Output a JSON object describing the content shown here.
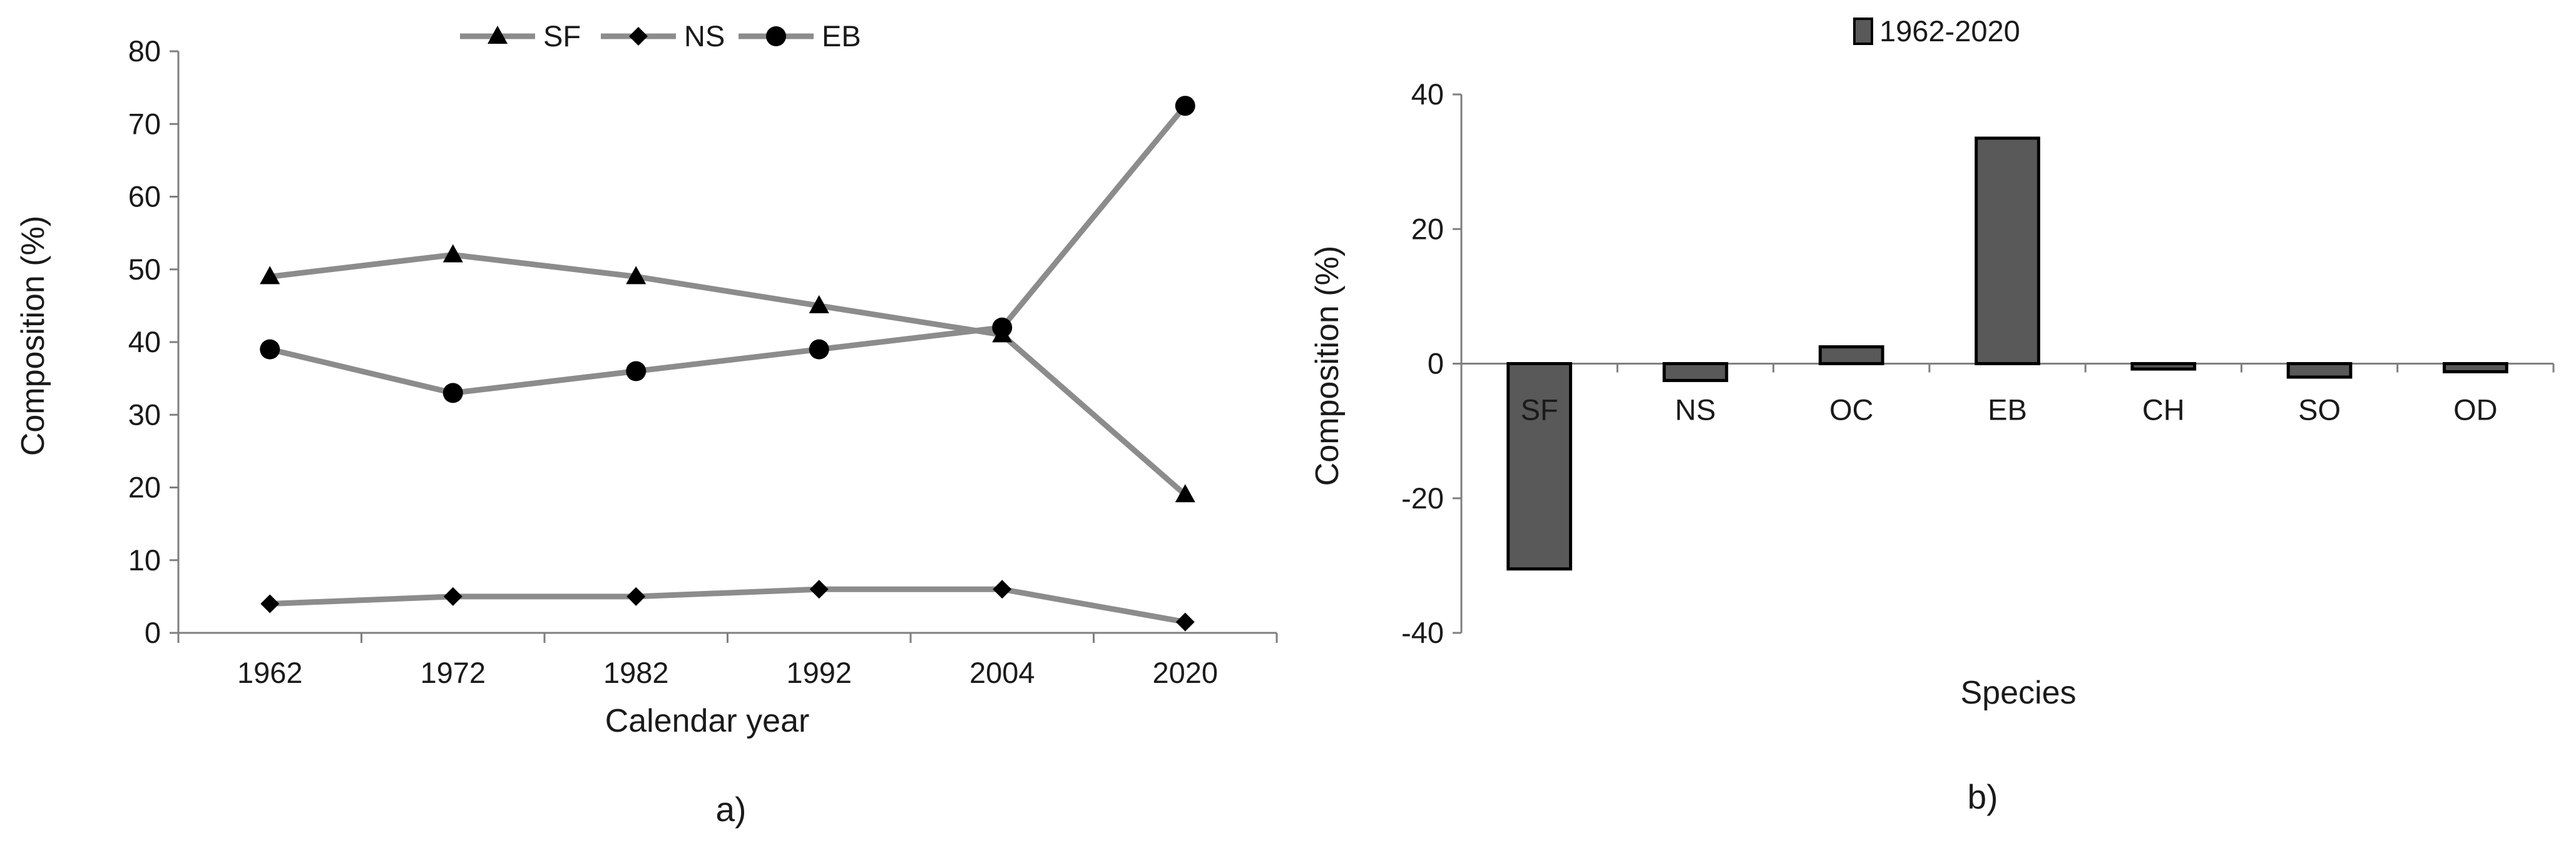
{
  "chart_data": [
    {
      "type": "line",
      "panel_label": "a)",
      "xlabel": "Calendar year",
      "ylabel": "Composition (%)",
      "categories": [
        "1962",
        "1972",
        "1982",
        "1992",
        "2004",
        "2020"
      ],
      "ylim": [
        0,
        80
      ],
      "yticks": [
        0,
        10,
        20,
        30,
        40,
        50,
        60,
        70,
        80
      ],
      "legend_position": "top",
      "grid": false,
      "series": [
        {
          "name": "SF",
          "marker": "triangle",
          "values": [
            49,
            52,
            49,
            45,
            41,
            19
          ]
        },
        {
          "name": "NS",
          "marker": "diamond",
          "values": [
            4,
            5,
            5,
            6,
            6,
            1.5
          ]
        },
        {
          "name": "EB",
          "marker": "circle",
          "values": [
            39,
            33,
            36,
            39,
            42,
            72.5
          ]
        }
      ],
      "line_color": "#8c8c8c",
      "marker_color": "#000000"
    },
    {
      "type": "bar",
      "panel_label": "b)",
      "xlabel": "Species",
      "ylabel": "Composition (%)",
      "categories": [
        "SF",
        "NS",
        "OC",
        "EB",
        "CH",
        "SO",
        "OD"
      ],
      "ylim": [
        -40,
        40
      ],
      "yticks": [
        -40,
        -20,
        0,
        20,
        40
      ],
      "legend_position": "top",
      "grid": false,
      "series": [
        {
          "name": "1962-2020",
          "values": [
            -30.5,
            -2.5,
            2.5,
            33.5,
            -0.8,
            -2,
            -1.2
          ]
        }
      ],
      "bar_color": "#595959"
    }
  ]
}
